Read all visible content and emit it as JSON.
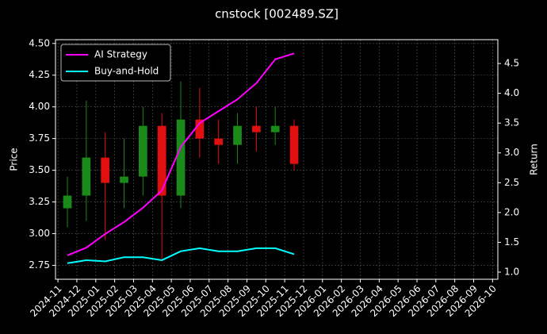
{
  "chart_data": {
    "type": "candlestick",
    "title": "cnstock [002489.SZ]",
    "x": [
      "2024-11",
      "2024-12",
      "2025-01",
      "2025-02",
      "2025-03",
      "2025-04",
      "2025-05",
      "2025-06",
      "2025-07",
      "2025-08",
      "2025-09",
      "2025-10",
      "2025-11"
    ],
    "open": [
      3.2,
      3.3,
      3.6,
      3.4,
      3.45,
      3.85,
      3.3,
      3.9,
      3.75,
      3.7,
      3.85,
      3.8,
      3.85
    ],
    "high": [
      3.45,
      4.05,
      3.8,
      3.75,
      4.0,
      3.95,
      4.2,
      4.15,
      3.9,
      3.95,
      4.0,
      4.0,
      3.9
    ],
    "low": [
      3.05,
      3.1,
      2.95,
      3.2,
      3.3,
      2.8,
      3.2,
      3.6,
      3.55,
      3.55,
      3.65,
      3.7,
      3.5
    ],
    "close": [
      3.3,
      3.6,
      3.4,
      3.45,
      3.85,
      3.3,
      3.9,
      3.75,
      3.7,
      3.85,
      3.8,
      3.85,
      3.55
    ],
    "up_color": "#1a8a1a",
    "down_color": "#e01010",
    "xticks": [
      "2024-11",
      "2024-12",
      "2025-01",
      "2025-02",
      "2025-03",
      "2025-04",
      "2025-05",
      "2025-06",
      "2025-07",
      "2025-08",
      "2025-09",
      "2025-10",
      "2025-11",
      "2025-12",
      "2026-01",
      "2026-02",
      "2026-03",
      "2026-04",
      "2026-05",
      "2026-06",
      "2026-07",
      "2026-08",
      "2026-09",
      "2026-10"
    ],
    "xlim": [
      "2024-11",
      "2026-10"
    ],
    "ylabel": "Price",
    "ylim": [
      2.64,
      4.53
    ],
    "yticks": [
      2.75,
      {
        "value": 3,
        "label": "3.00"
      },
      3.25,
      {
        "value": 3.5,
        "label": "3.50"
      },
      3.75,
      {
        "value": 4,
        "label": "4.00"
      },
      4.25,
      {
        "value": 4.5,
        "label": "4.50"
      }
    ],
    "y2label": "Return",
    "y2lim": [
      0.88,
      4.9
    ],
    "y2ticks": [
      {
        "value": 1,
        "label": "1.0"
      },
      1.5,
      {
        "value": 2,
        "label": "2.0"
      },
      2.5,
      {
        "value": 3,
        "label": "3.0"
      },
      3.5,
      {
        "value": 4,
        "label": "4.0"
      },
      4.5
    ],
    "series": [
      {
        "name": "AI Strategy",
        "color": "#ff00ff",
        "axis": "y2",
        "values": [
          1.28,
          1.41,
          1.64,
          1.84,
          2.08,
          2.37,
          3.1,
          3.5,
          3.7,
          3.9,
          4.17,
          4.57,
          4.67
        ]
      },
      {
        "name": "Buy-and-Hold",
        "color": "#00ffff",
        "axis": "y2",
        "values": [
          1.15,
          1.2,
          1.18,
          1.25,
          1.25,
          1.2,
          1.35,
          1.4,
          1.35,
          1.35,
          1.4,
          1.4,
          1.3
        ]
      }
    ],
    "grid": true,
    "legend": "upper left"
  }
}
